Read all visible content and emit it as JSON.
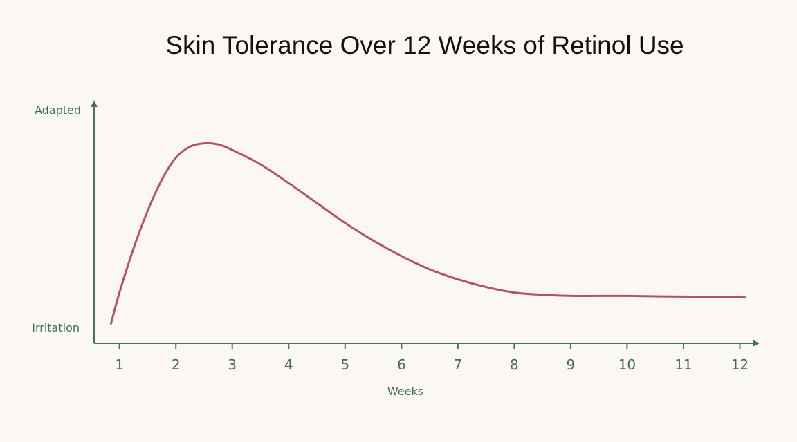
{
  "chart_data": {
    "type": "line",
    "title": "Skin Tolerance Over 12 Weeks of Retinol Use",
    "xlabel": "Weeks",
    "ylabel": "",
    "x_ticks": [
      1,
      2,
      3,
      4,
      5,
      6,
      7,
      8,
      9,
      10,
      11,
      12
    ],
    "y_tick_labels": {
      "bottom": "Irritation",
      "top": "Adapted"
    },
    "xlim": [
      0.55,
      12.35
    ],
    "ylim": [
      0,
      1
    ],
    "grid": false,
    "series": [
      {
        "color": "#b5506a",
        "x": [
          0.85,
          1.0,
          1.25,
          1.5,
          1.75,
          2.0,
          2.25,
          2.5,
          2.75,
          3.0,
          3.5,
          4.0,
          4.5,
          5.0,
          5.5,
          6.0,
          6.5,
          7.0,
          7.5,
          8.0,
          8.5,
          9.0,
          9.5,
          10.0,
          10.5,
          11.0,
          11.5,
          12.1
        ],
        "y": [
          0.03,
          0.17,
          0.37,
          0.54,
          0.68,
          0.78,
          0.83,
          0.845,
          0.84,
          0.815,
          0.75,
          0.665,
          0.575,
          0.485,
          0.405,
          0.335,
          0.275,
          0.23,
          0.195,
          0.17,
          0.16,
          0.155,
          0.155,
          0.155,
          0.153,
          0.152,
          0.15,
          0.148
        ]
      }
    ],
    "axis_color": "#4a6e60"
  }
}
